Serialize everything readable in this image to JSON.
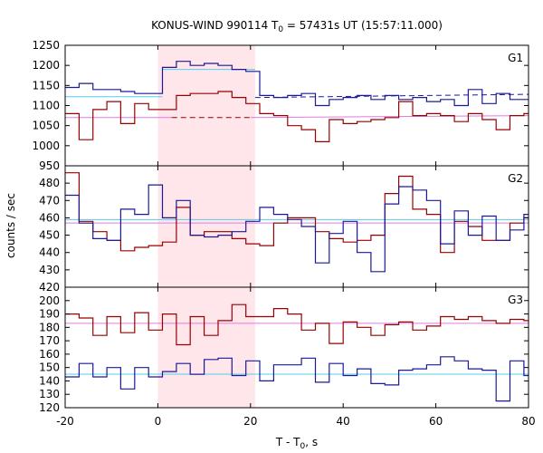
{
  "chart_data": {
    "type": "line",
    "title": "KONUS-WIND 990114 T",
    "title_sub": "0",
    "title_rest": " = 57431s UT (15:57:11.000)",
    "xlabel": "T - T",
    "xlabel_sub": "0",
    "xlabel_rest": ", s",
    "ylabel": "counts / sec",
    "xlim": [
      -20,
      80
    ],
    "x_ticks": [
      "-20",
      "0",
      "20",
      "40",
      "60",
      "80"
    ],
    "x_tick_values": [
      -20,
      0,
      20,
      40,
      60,
      80
    ],
    "shaded_interval": [
      0,
      21
    ],
    "bin_edges": [
      -20,
      -17,
      -14,
      -11,
      -8,
      -5,
      -2,
      1,
      4,
      7,
      10,
      13,
      16,
      19,
      22,
      25,
      28,
      31,
      34,
      37,
      40,
      43,
      46,
      49,
      52,
      55,
      58,
      61,
      64,
      67,
      70,
      73,
      76,
      79,
      80
    ],
    "colors": {
      "red_series": "#990000",
      "blue_series": "#1a1a99",
      "red_fit": "#e07be0",
      "blue_fit": "#55ccee",
      "shade": "#ffe6ea"
    },
    "panels": [
      {
        "label": "G1",
        "ylim": [
          950,
          1250
        ],
        "y_ticks": [
          "950",
          "1000",
          "1050",
          "1100",
          "1150",
          "1200",
          "1250"
        ],
        "y_tick_values": [
          950,
          1000,
          1050,
          1100,
          1150,
          1200,
          1250
        ],
        "series": [
          {
            "color": "red",
            "values": [
              1080,
              1015,
              1090,
              1110,
              1055,
              1105,
              1090,
              1090,
              1125,
              1130,
              1130,
              1135,
              1120,
              1105,
              1080,
              1075,
              1050,
              1040,
              1010,
              1065,
              1055,
              1060,
              1065,
              1070,
              1110,
              1075,
              1080,
              1075,
              1060,
              1080,
              1065,
              1040,
              1075,
              1080
            ]
          },
          {
            "color": "blue",
            "values": [
              1145,
              1155,
              1140,
              1140,
              1135,
              1130,
              1130,
              1195,
              1210,
              1200,
              1205,
              1200,
              1190,
              1185,
              1125,
              1120,
              1125,
              1130,
              1100,
              1115,
              1120,
              1125,
              1115,
              1125,
              1115,
              1120,
              1110,
              1115,
              1100,
              1140,
              1105,
              1130,
              1115,
              1115
            ]
          }
        ],
        "fits": [
          {
            "color": "blue",
            "x_start": -20,
            "x_end": 1,
            "y_start": 1122,
            "y_end": 1122,
            "style": "solid"
          },
          {
            "color": "blue",
            "x_start": 1,
            "x_end": 21,
            "y_start": 1190,
            "y_end": 1190,
            "style": "solid"
          },
          {
            "color": "blue",
            "x_start": 21,
            "x_end": 80,
            "y_start": 1120,
            "y_end": 1128,
            "style": "dashed"
          },
          {
            "color": "red",
            "x_start": -20,
            "x_end": 3,
            "y_start": 1070,
            "y_end": 1070,
            "style": "solid"
          },
          {
            "color": "red",
            "x_start": 3,
            "x_end": 20,
            "y_start": 1070,
            "y_end": 1070,
            "style": "dashed"
          },
          {
            "color": "red",
            "x_start": 20,
            "x_end": 80,
            "y_start": 1070,
            "y_end": 1075,
            "style": "solid"
          }
        ]
      },
      {
        "label": "G2",
        "ylim": [
          420,
          490
        ],
        "y_ticks": [
          "420",
          "430",
          "440",
          "450",
          "460",
          "470",
          "480"
        ],
        "y_tick_values": [
          420,
          430,
          440,
          450,
          460,
          470,
          480
        ],
        "series": [
          {
            "color": "red",
            "values": [
              486,
              458,
              452,
              447,
              441,
              443,
              444,
              446,
              466,
              450,
              452,
              452,
              448,
              445,
              444,
              457,
              460,
              460,
              452,
              448,
              446,
              447,
              450,
              474,
              484,
              465,
              462,
              440,
              458,
              455,
              447,
              447,
              457,
              460
            ]
          },
          {
            "color": "blue",
            "values": [
              473,
              457,
              448,
              447,
              465,
              462,
              479,
              460,
              470,
              450,
              449,
              450,
              452,
              458,
              466,
              462,
              459,
              455,
              434,
              451,
              458,
              440,
              429,
              468,
              478,
              476,
              470,
              445,
              464,
              450,
              461,
              447,
              453,
              462
            ]
          }
        ],
        "fits": [
          {
            "color": "red",
            "x_start": -20,
            "x_end": 80,
            "y_start": 457,
            "y_end": 457,
            "style": "solid"
          },
          {
            "color": "blue",
            "x_start": -20,
            "x_end": 80,
            "y_start": 459,
            "y_end": 459,
            "style": "solid"
          }
        ]
      },
      {
        "label": "G3",
        "ylim": [
          120,
          210
        ],
        "y_ticks": [
          "120",
          "130",
          "140",
          "150",
          "160",
          "170",
          "180",
          "190",
          "200"
        ],
        "y_tick_values": [
          120,
          130,
          140,
          150,
          160,
          170,
          180,
          190,
          200
        ],
        "series": [
          {
            "color": "red",
            "values": [
              190,
              187,
              174,
              188,
              176,
              191,
              178,
              190,
              167,
              188,
              174,
              185,
              197,
              188,
              188,
              194,
              190,
              178,
              183,
              168,
              184,
              180,
              174,
              182,
              184,
              178,
              181,
              188,
              186,
              188,
              185,
              183,
              186,
              185
            ]
          },
          {
            "color": "blue",
            "values": [
              143,
              153,
              143,
              150,
              134,
              150,
              143,
              147,
              153,
              145,
              156,
              157,
              144,
              155,
              140,
              152,
              152,
              157,
              139,
              153,
              144,
              149,
              138,
              137,
              148,
              149,
              152,
              158,
              155,
              149,
              148,
              125,
              155,
              144
            ]
          }
        ],
        "fits": [
          {
            "color": "red",
            "x_start": -20,
            "x_end": 80,
            "y_start": 183,
            "y_end": 183,
            "style": "solid"
          },
          {
            "color": "blue",
            "x_start": -20,
            "x_end": 80,
            "y_start": 145,
            "y_end": 145,
            "style": "solid"
          }
        ]
      }
    ]
  }
}
